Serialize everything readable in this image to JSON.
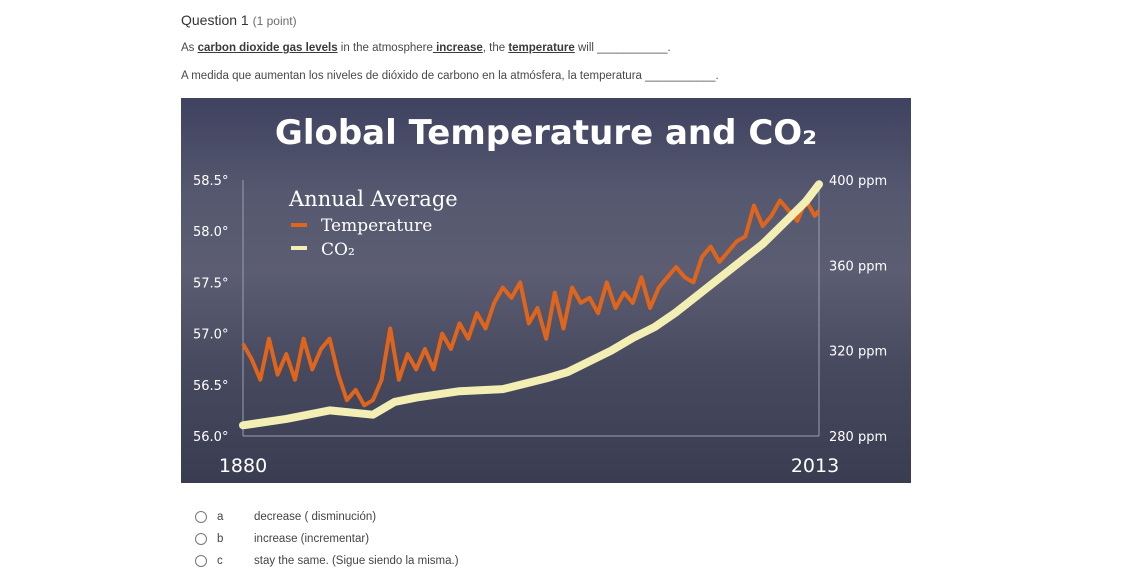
{
  "question": {
    "title": "Question 1",
    "points": "(1 point)",
    "prompt_en": {
      "p1": "As ",
      "u1": "carbon dioxide gas levels",
      "p2": " in the atmosphere",
      "u2": " increase",
      "p3": ", the ",
      "u3": "temperature",
      "p4": " will ___________."
    },
    "prompt_es": "A medida que aumentan los niveles de dióxido de carbono en la atmósfera, la temperatura ___________."
  },
  "options": [
    {
      "letter": "a",
      "label": "decrease ( disminución)"
    },
    {
      "letter": "b",
      "label": "increase (incrementar)"
    },
    {
      "letter": "c",
      "label": "stay the same. (Sigue siendo la misma.)"
    }
  ],
  "chart_data": {
    "type": "line",
    "title": "Global Temperature and CO₂",
    "legend_title": "Annual Average",
    "legend_position": "top-left",
    "x_start_label": "1880",
    "x_end_label": "2013",
    "xlim": [
      1880,
      2013
    ],
    "y_left": {
      "ticks": [
        "58.5°",
        "58.0°",
        "57.5°",
        "57.0°",
        "56.5°",
        "56.0°"
      ],
      "lim": [
        56.0,
        58.5
      ]
    },
    "y_right": {
      "ticks": [
        "400 ppm",
        "360 ppm",
        "320 ppm",
        "280 ppm"
      ],
      "lim": [
        280,
        400
      ]
    },
    "colors": {
      "temperature": "#e0651c",
      "co2": "#f3efb4"
    },
    "series": [
      {
        "name": "Temperature",
        "axis": "left",
        "x": [
          1880,
          1882,
          1884,
          1886,
          1888,
          1890,
          1892,
          1894,
          1896,
          1898,
          1900,
          1902,
          1904,
          1906,
          1908,
          1910,
          1912,
          1914,
          1916,
          1918,
          1920,
          1922,
          1924,
          1926,
          1928,
          1930,
          1932,
          1934,
          1936,
          1938,
          1940,
          1942,
          1944,
          1946,
          1948,
          1950,
          1952,
          1954,
          1956,
          1958,
          1960,
          1962,
          1964,
          1966,
          1968,
          1970,
          1972,
          1974,
          1976,
          1978,
          1980,
          1982,
          1984,
          1986,
          1988,
          1990,
          1992,
          1994,
          1996,
          1998,
          2000,
          2002,
          2004,
          2006,
          2008,
          2010,
          2012,
          2013
        ],
        "values": [
          56.9,
          56.75,
          56.55,
          56.95,
          56.6,
          56.8,
          56.55,
          56.95,
          56.65,
          56.85,
          56.95,
          56.6,
          56.35,
          56.45,
          56.3,
          56.35,
          56.55,
          57.05,
          56.55,
          56.8,
          56.65,
          56.85,
          56.65,
          57.0,
          56.85,
          57.1,
          56.95,
          57.2,
          57.05,
          57.3,
          57.45,
          57.35,
          57.5,
          57.1,
          57.25,
          56.95,
          57.4,
          57.05,
          57.45,
          57.3,
          57.35,
          57.2,
          57.5,
          57.25,
          57.4,
          57.3,
          57.55,
          57.25,
          57.45,
          57.55,
          57.65,
          57.55,
          57.5,
          57.75,
          57.85,
          57.7,
          57.8,
          57.9,
          57.95,
          58.25,
          58.05,
          58.15,
          58.3,
          58.2,
          58.1,
          58.3,
          58.15,
          58.2
        ]
      },
      {
        "name": "CO₂",
        "axis": "right",
        "x": [
          1880,
          1890,
          1900,
          1910,
          1915,
          1920,
          1930,
          1940,
          1950,
          1955,
          1960,
          1965,
          1970,
          1975,
          1980,
          1985,
          1990,
          1995,
          2000,
          2005,
          2010,
          2013
        ],
        "values": [
          285,
          288,
          292,
          290,
          296,
          298,
          301,
          302,
          307,
          310,
          315,
          320,
          326,
          331,
          338,
          346,
          354,
          362,
          370,
          380,
          390,
          398
        ]
      }
    ]
  }
}
